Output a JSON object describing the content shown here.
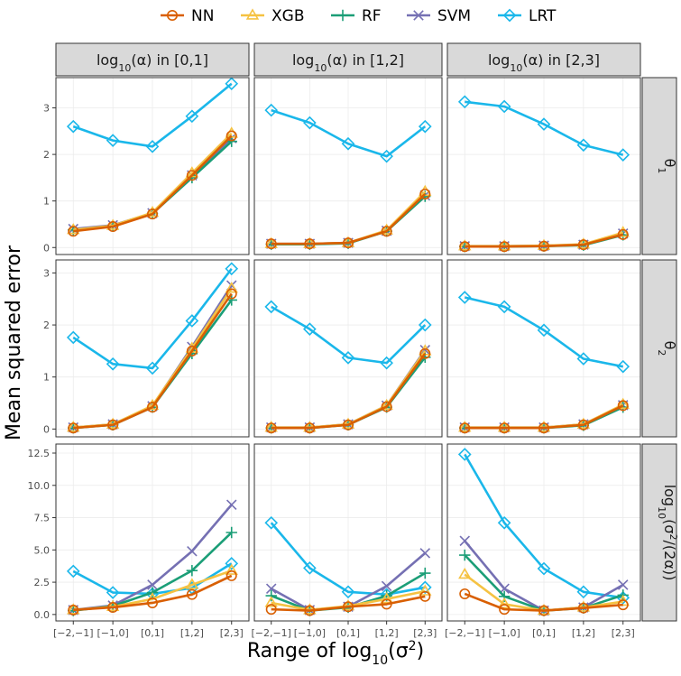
{
  "chart_data": {
    "type": "line",
    "ylabel": "Mean squared error",
    "xlabel": "Range of log10(σ2)",
    "categories": [
      "[−2,−1]",
      "[−1,0]",
      "[0,1]",
      "[1,2]",
      "[2,3]"
    ],
    "legend": [
      {
        "name": "NN",
        "color": "#d95f02",
        "marker": "circle"
      },
      {
        "name": "XGB",
        "color": "#f5c242",
        "marker": "triangle"
      },
      {
        "name": "RF",
        "color": "#1b9e77",
        "marker": "plus"
      },
      {
        "name": "SVM",
        "color": "#7570b3",
        "marker": "x"
      },
      {
        "name": "LRT",
        "color": "#1ab7ea",
        "marker": "diamond"
      }
    ],
    "columns": [
      {
        "prefix": "log",
        "sub": "10",
        "suffix": "(α) in [0,1]"
      },
      {
        "prefix": "log",
        "sub": "10",
        "suffix": "(α) in [1,2]"
      },
      {
        "prefix": "log",
        "sub": "10",
        "suffix": "(α) in [2,3]"
      }
    ],
    "rows": [
      {
        "label": "θ",
        "sub": "1",
        "ylim": [
          -0.15,
          3.65
        ],
        "ticks": [
          0,
          1,
          2,
          3
        ],
        "tick_labels": [
          "0",
          "1",
          "2",
          "3"
        ]
      },
      {
        "label": "θ",
        "sub": "2",
        "ylim": [
          -0.15,
          3.25
        ],
        "ticks": [
          0,
          1,
          2,
          3
        ],
        "tick_labels": [
          "0",
          "1",
          "2",
          "3"
        ]
      },
      {
        "label_pre": "log",
        "label_sub": "10",
        "label_mid": "(σ",
        "label_sup": "2",
        "label_post": "/(2α))",
        "ylim": [
          -0.5,
          13.2
        ],
        "ticks": [
          0,
          2.5,
          5,
          7.5,
          10,
          12.5
        ],
        "tick_labels": [
          "0.0",
          "2.5",
          "5.0",
          "7.5",
          "10.0",
          "12.5"
        ]
      }
    ],
    "panels": [
      [
        {
          "NN": [
            0.35,
            0.45,
            0.72,
            1.55,
            2.4
          ],
          "XGB": [
            0.38,
            0.47,
            0.75,
            1.6,
            2.45
          ],
          "RF": [
            0.38,
            0.46,
            0.73,
            1.5,
            2.28
          ],
          "SVM": [
            0.4,
            0.48,
            0.74,
            1.55,
            2.35
          ],
          "LRT": [
            2.6,
            2.3,
            2.17,
            2.82,
            3.52
          ]
        },
        {
          "NN": [
            0.08,
            0.08,
            0.1,
            0.35,
            1.15
          ],
          "XGB": [
            0.08,
            0.08,
            0.1,
            0.37,
            1.2
          ],
          "RF": [
            0.07,
            0.07,
            0.09,
            0.35,
            1.1
          ],
          "SVM": [
            0.08,
            0.08,
            0.1,
            0.36,
            1.12
          ],
          "LRT": [
            2.95,
            2.68,
            2.23,
            1.96,
            2.6
          ]
        },
        {
          "NN": [
            0.02,
            0.02,
            0.03,
            0.06,
            0.28
          ],
          "XGB": [
            0.03,
            0.03,
            0.04,
            0.07,
            0.32
          ],
          "RF": [
            0.02,
            0.02,
            0.03,
            0.05,
            0.27
          ],
          "SVM": [
            0.03,
            0.03,
            0.04,
            0.06,
            0.3
          ],
          "LRT": [
            3.13,
            3.03,
            2.65,
            2.2,
            1.99
          ]
        }
      ],
      [
        {
          "NN": [
            0.02,
            0.08,
            0.42,
            1.5,
            2.6
          ],
          "XGB": [
            0.03,
            0.09,
            0.45,
            1.55,
            2.7
          ],
          "RF": [
            0.02,
            0.08,
            0.42,
            1.45,
            2.48
          ],
          "SVM": [
            0.03,
            0.09,
            0.44,
            1.58,
            2.76
          ],
          "LRT": [
            1.76,
            1.25,
            1.17,
            2.08,
            3.08
          ]
        },
        {
          "NN": [
            0.02,
            0.02,
            0.08,
            0.43,
            1.45
          ],
          "XGB": [
            0.03,
            0.03,
            0.09,
            0.45,
            1.5
          ],
          "RF": [
            0.02,
            0.02,
            0.08,
            0.42,
            1.38
          ],
          "SVM": [
            0.03,
            0.03,
            0.09,
            0.45,
            1.52
          ],
          "LRT": [
            2.35,
            1.92,
            1.37,
            1.27,
            2.0
          ]
        },
        {
          "NN": [
            0.02,
            0.02,
            0.02,
            0.08,
            0.45
          ],
          "XGB": [
            0.03,
            0.03,
            0.03,
            0.09,
            0.47
          ],
          "RF": [
            0.02,
            0.02,
            0.02,
            0.07,
            0.42
          ],
          "SVM": [
            0.03,
            0.03,
            0.03,
            0.09,
            0.46
          ],
          "LRT": [
            2.53,
            2.35,
            1.9,
            1.35,
            1.2
          ]
        }
      ],
      [
        {
          "NN": [
            0.35,
            0.55,
            0.9,
            1.55,
            3.0
          ],
          "XGB": [
            0.35,
            0.6,
            1.2,
            2.3,
            3.4
          ],
          "RF": [
            0.3,
            0.65,
            1.7,
            3.4,
            6.35
          ],
          "SVM": [
            0.35,
            0.7,
            2.3,
            4.9,
            8.5
          ],
          "LRT": [
            3.35,
            1.7,
            1.6,
            2.05,
            3.95
          ]
        },
        {
          "NN": [
            0.4,
            0.3,
            0.6,
            0.8,
            1.4
          ],
          "XGB": [
            0.9,
            0.35,
            0.65,
            1.2,
            1.8
          ],
          "RF": [
            1.45,
            0.3,
            0.55,
            1.45,
            3.2
          ],
          "SVM": [
            2.0,
            0.35,
            0.6,
            2.2,
            4.75
          ],
          "LRT": [
            7.1,
            3.6,
            1.75,
            1.55,
            2.1
          ]
        },
        {
          "NN": [
            1.6,
            0.4,
            0.3,
            0.5,
            0.75
          ],
          "XGB": [
            3.1,
            0.8,
            0.3,
            0.55,
            1.0
          ],
          "RF": [
            4.6,
            1.4,
            0.3,
            0.5,
            1.5
          ],
          "SVM": [
            5.7,
            2.0,
            0.3,
            0.55,
            2.3
          ],
          "LRT": [
            12.4,
            7.1,
            3.55,
            1.75,
            1.3
          ]
        }
      ]
    ]
  }
}
